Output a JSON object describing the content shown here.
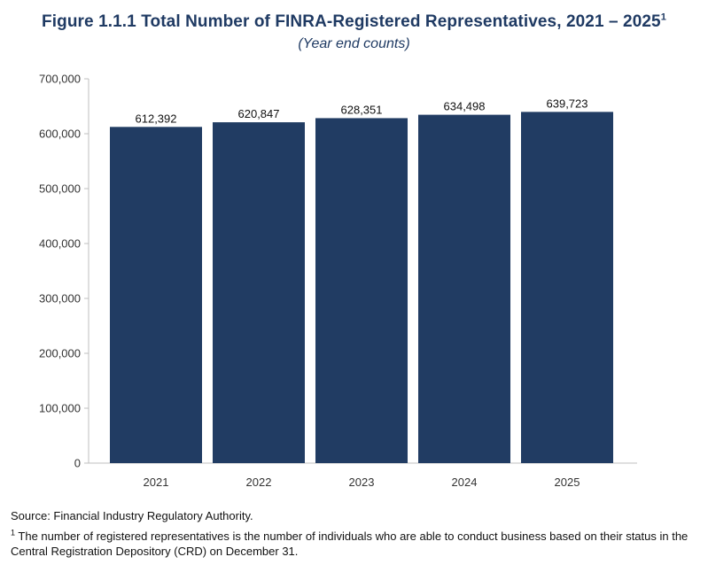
{
  "chart_data": {
    "type": "bar",
    "title": "Figure 1.1.1 Total Number of FINRA-Registered Representatives, 2021 – 2025",
    "title_superscript": "1",
    "subtitle": "(Year end counts)",
    "categories": [
      "2021",
      "2022",
      "2023",
      "2024",
      "2025"
    ],
    "values": [
      612392,
      620847,
      628351,
      634498,
      639723
    ],
    "value_labels": [
      "612,392",
      "620,847",
      "628,351",
      "634,498",
      "639,723"
    ],
    "ylim": [
      0,
      700000
    ],
    "yticks": [
      0,
      100000,
      200000,
      300000,
      400000,
      500000,
      600000,
      700000
    ],
    "ytick_labels": [
      "0",
      "100,000",
      "200,000",
      "300,000",
      "400,000",
      "500,000",
      "600,000",
      "700,000"
    ],
    "xlabel": "",
    "ylabel": "",
    "grid": false,
    "bar_color": "#213c63"
  },
  "notes": {
    "source": "Source: Financial Industry Regulatory Authority.",
    "footnote_marker": "1",
    "footnote": "The number of registered representatives is the number of individuals who are able to conduct business based on their status in the Central Registration Depository (CRD) on December 31."
  }
}
